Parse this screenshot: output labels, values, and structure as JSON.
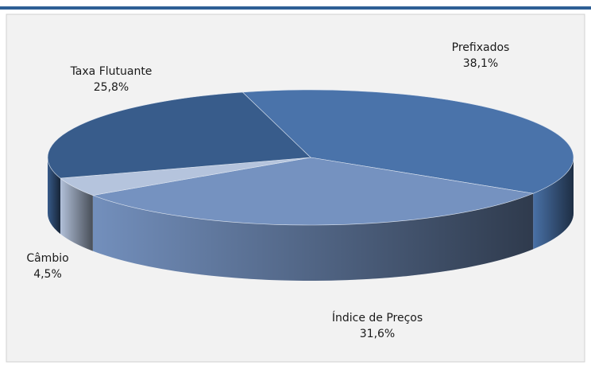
{
  "chart_data": {
    "type": "pie",
    "categories": [
      "Prefixados",
      "Índice de Preços",
      "Câmbio",
      "Taxa Flutuante"
    ],
    "values": [
      38.1,
      31.6,
      4.5,
      25.8
    ],
    "value_labels": [
      "38,1%",
      "31,6%",
      "4,5%",
      "25,8%"
    ],
    "colors": [
      "#4a73aa",
      "#7592c0",
      "#b5c4dd",
      "#385c8b"
    ]
  }
}
